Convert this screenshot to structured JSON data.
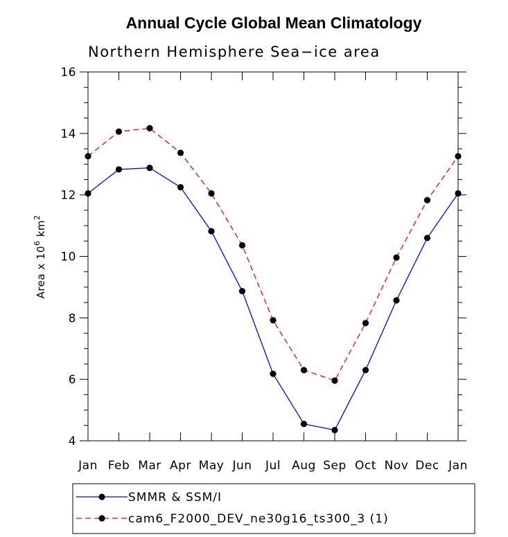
{
  "chart_data": {
    "type": "line",
    "title": "Annual Cycle Global Mean Climatology",
    "subtitle": "Northern Hemisphere Sea−ice area",
    "ylabel_prefix": "Area x 10",
    "ylabel_exp1": "6",
    "ylabel_mid": " km",
    "ylabel_exp2": "2",
    "xlabel": "",
    "categories": [
      "Jan",
      "Feb",
      "Mar",
      "Apr",
      "May",
      "Jun",
      "Jul",
      "Aug",
      "Sep",
      "Oct",
      "Nov",
      "Dec",
      "Jan"
    ],
    "ylim": [
      4,
      16
    ],
    "yticks": [
      4,
      6,
      8,
      10,
      12,
      14,
      16
    ],
    "grid": false,
    "legend_position": "bottom",
    "series": [
      {
        "name": "SMMR & SSM/I",
        "color": "#0000ff",
        "dash": "solid",
        "values": [
          12.05,
          12.83,
          12.88,
          12.25,
          10.82,
          8.87,
          6.18,
          4.55,
          4.35,
          6.3,
          8.57,
          10.6,
          12.05
        ]
      },
      {
        "name": "cam6_F2000_DEV_ne30g16_ts300_3 (1)",
        "color": "#ff0000",
        "dash": "dashed",
        "values": [
          13.26,
          14.06,
          14.17,
          13.37,
          12.05,
          10.36,
          7.92,
          6.3,
          5.96,
          7.83,
          9.96,
          11.83,
          13.26
        ]
      }
    ]
  }
}
